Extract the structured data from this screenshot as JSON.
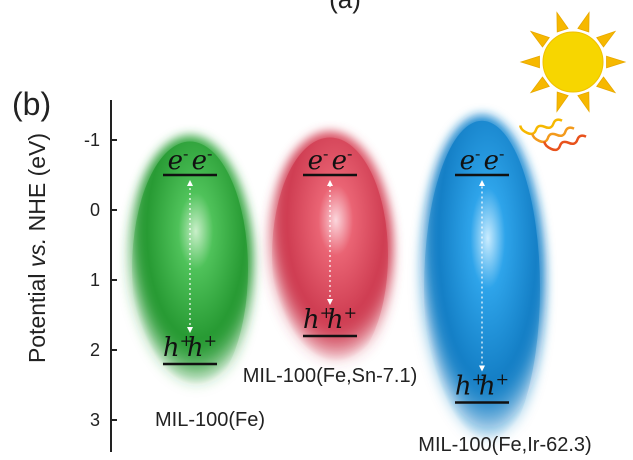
{
  "top_label": "(a)",
  "panel_label": "(b)",
  "axis": {
    "ylabel_pre": "Potential ",
    "ylabel_italic": "vs.",
    "ylabel_post": " NHE (eV)",
    "ticks": [
      {
        "value": -1,
        "label": "-1"
      },
      {
        "value": 0,
        "label": "0"
      },
      {
        "value": 1,
        "label": "1"
      },
      {
        "value": 2,
        "label": "2"
      },
      {
        "value": 3,
        "label": "3"
      }
    ]
  },
  "electron_label": "e",
  "electron_sup": "-",
  "hole_label": "h",
  "hole_sup": "+",
  "materials": [
    {
      "name": "MIL-100(Fe)",
      "color": "#2e9e3a",
      "cb": -0.5,
      "vb": 2.2
    },
    {
      "name": "MIL-100(Fe,Sn-7.1)",
      "color": "#d9465a",
      "cb": -0.5,
      "vb": 1.8
    },
    {
      "name": "MIL-100(Fe,Ir-62.3)",
      "color": "#1e8fd6",
      "cb": -0.5,
      "vb": 2.75
    }
  ],
  "sun": {
    "icon": "sun-icon",
    "color": "#f7d600",
    "ray_color": "#f6b800",
    "wave_color": "#f08a1c"
  }
}
